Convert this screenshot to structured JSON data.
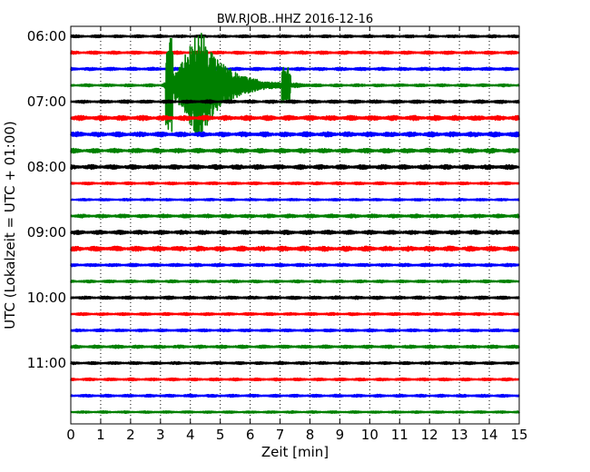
{
  "chart_data": {
    "type": "line",
    "title": "BW.RJOB..HHZ 2016-12-16",
    "xlabel": "Zeit  [min]",
    "ylabel": "UTC (Lokalzeit = UTC + 01:00)",
    "xlim": [
      0,
      15
    ],
    "x_ticks": [
      "0",
      "1",
      "2",
      "3",
      "4",
      "5",
      "6",
      "7",
      "8",
      "9",
      "10",
      "11",
      "12",
      "13",
      "14",
      "15"
    ],
    "y_tick_labels": [
      "06:00",
      "07:00",
      "08:00",
      "09:00",
      "10:00",
      "11:00"
    ],
    "grid": "vertical-dotted",
    "trace_colors": [
      "#000000",
      "#ff0000",
      "#0000ff",
      "#008000"
    ],
    "traces": [
      {
        "start": "06:00",
        "color": "#000000",
        "amplitude": 0.12
      },
      {
        "start": "06:15",
        "color": "#ff0000",
        "amplitude": 0.14
      },
      {
        "start": "06:30",
        "color": "#0000ff",
        "amplitude": 0.14
      },
      {
        "start": "06:45",
        "color": "#008000",
        "amplitude": 0.12,
        "event": {
          "start_min": 3.0,
          "peak_min": 4.3,
          "end_min": 8.0,
          "peak_amplitude": 4.0
        }
      },
      {
        "start": "07:00",
        "color": "#000000",
        "amplitude": 0.15
      },
      {
        "start": "07:15",
        "color": "#ff0000",
        "amplitude": 0.22
      },
      {
        "start": "07:30",
        "color": "#0000ff",
        "amplitude": 0.22
      },
      {
        "start": "07:45",
        "color": "#008000",
        "amplitude": 0.2
      },
      {
        "start": "08:00",
        "color": "#000000",
        "amplitude": 0.2
      },
      {
        "start": "08:15",
        "color": "#ff0000",
        "amplitude": 0.12
      },
      {
        "start": "08:30",
        "color": "#0000ff",
        "amplitude": 0.1
      },
      {
        "start": "08:45",
        "color": "#008000",
        "amplitude": 0.16
      },
      {
        "start": "09:00",
        "color": "#000000",
        "amplitude": 0.18
      },
      {
        "start": "09:15",
        "color": "#ff0000",
        "amplitude": 0.22
      },
      {
        "start": "09:30",
        "color": "#0000ff",
        "amplitude": 0.14
      },
      {
        "start": "09:45",
        "color": "#008000",
        "amplitude": 0.12
      },
      {
        "start": "10:00",
        "color": "#000000",
        "amplitude": 0.14
      },
      {
        "start": "10:15",
        "color": "#ff0000",
        "amplitude": 0.12
      },
      {
        "start": "10:30",
        "color": "#0000ff",
        "amplitude": 0.12
      },
      {
        "start": "10:45",
        "color": "#008000",
        "amplitude": 0.14
      },
      {
        "start": "11:00",
        "color": "#000000",
        "amplitude": 0.12
      },
      {
        "start": "11:15",
        "color": "#ff0000",
        "amplitude": 0.12
      },
      {
        "start": "11:30",
        "color": "#0000ff",
        "amplitude": 0.12
      },
      {
        "start": "11:45",
        "color": "#008000",
        "amplitude": 0.1
      }
    ]
  }
}
